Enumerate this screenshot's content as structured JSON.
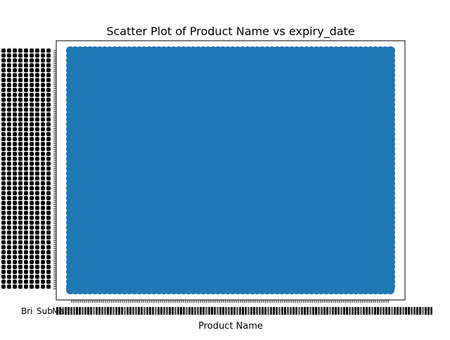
{
  "chart_data": {
    "type": "scatter",
    "title": "Scatter Plot of Product Name vs expiry_date",
    "xlabel": "Product Name",
    "ylabel": "",
    "grid": false,
    "legend": "none",
    "x_tick_labels_legible": [
      "Bri",
      "Sub",
      "Ma"
    ],
    "x_tick_labels_note_unreadable": true,
    "y_tick_labels_note_unreadable": true,
    "series": [
      {
        "color": "#1f77b4",
        "marker": "circle",
        "density": "fully saturated"
      }
    ]
  },
  "colors": {
    "accent": "#1f77b4",
    "background": "#ffffff",
    "axis": "#000000"
  }
}
